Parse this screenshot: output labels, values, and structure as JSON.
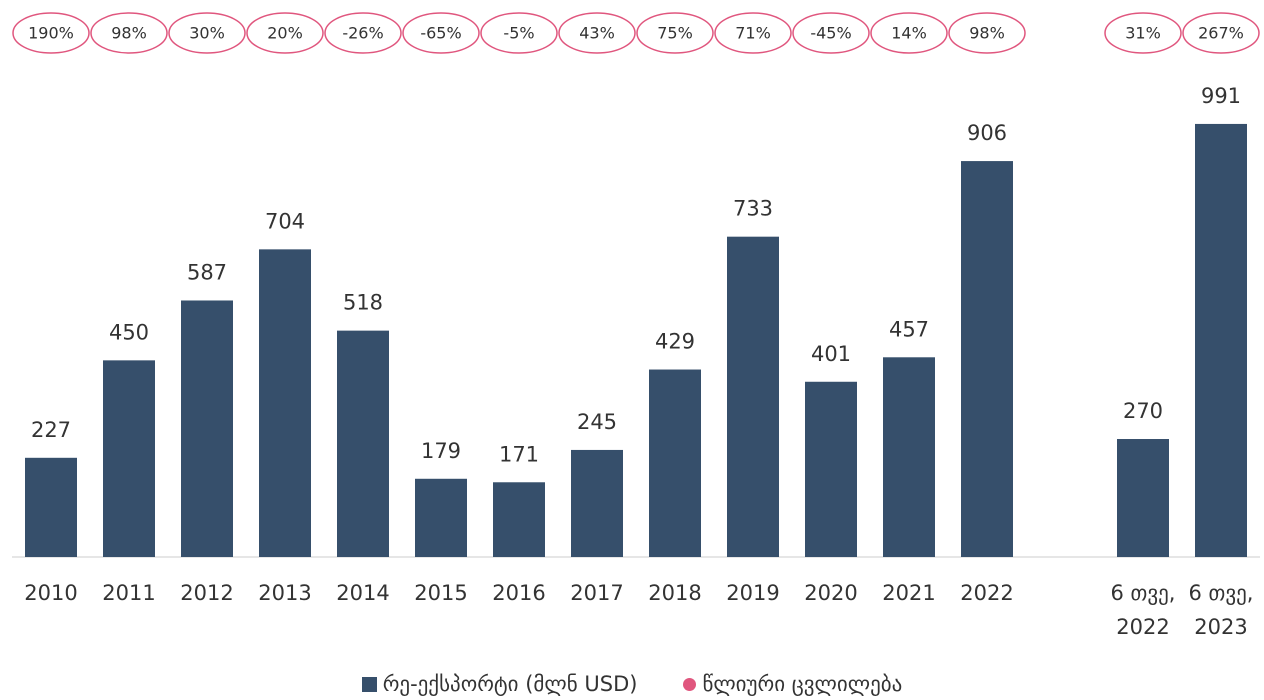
{
  "chart_data": {
    "type": "bar",
    "categories": [
      "2010",
      "2011",
      "2012",
      "2013",
      "2014",
      "2015",
      "2016",
      "2017",
      "2018",
      "2019",
      "2020",
      "2021",
      "2022",
      null,
      "6 თვე, 2022",
      "6 თვე, 2023"
    ],
    "series": [
      {
        "name": "რე-ექსპორტი (მლნ USD)",
        "color": "#364f6b",
        "values": [
          227,
          450,
          587,
          704,
          518,
          179,
          171,
          245,
          429,
          733,
          401,
          457,
          906,
          null,
          270,
          991
        ]
      },
      {
        "name": "წლიური ცვლილება",
        "color": "#e0567e",
        "type": "label",
        "values": [
          190,
          98,
          30,
          20,
          -26,
          -65,
          -5,
          43,
          75,
          71,
          -45,
          14,
          98,
          null,
          31,
          267
        ],
        "value_labels": [
          "190%",
          "98%",
          "30%",
          "20%",
          "-26%",
          "-65%",
          "-5%",
          "43%",
          "75%",
          "71%",
          "-45%",
          "14%",
          "98%",
          null,
          "31%",
          "267%"
        ]
      }
    ],
    "ylim": [
      0,
      1000
    ],
    "grid": false
  }
}
